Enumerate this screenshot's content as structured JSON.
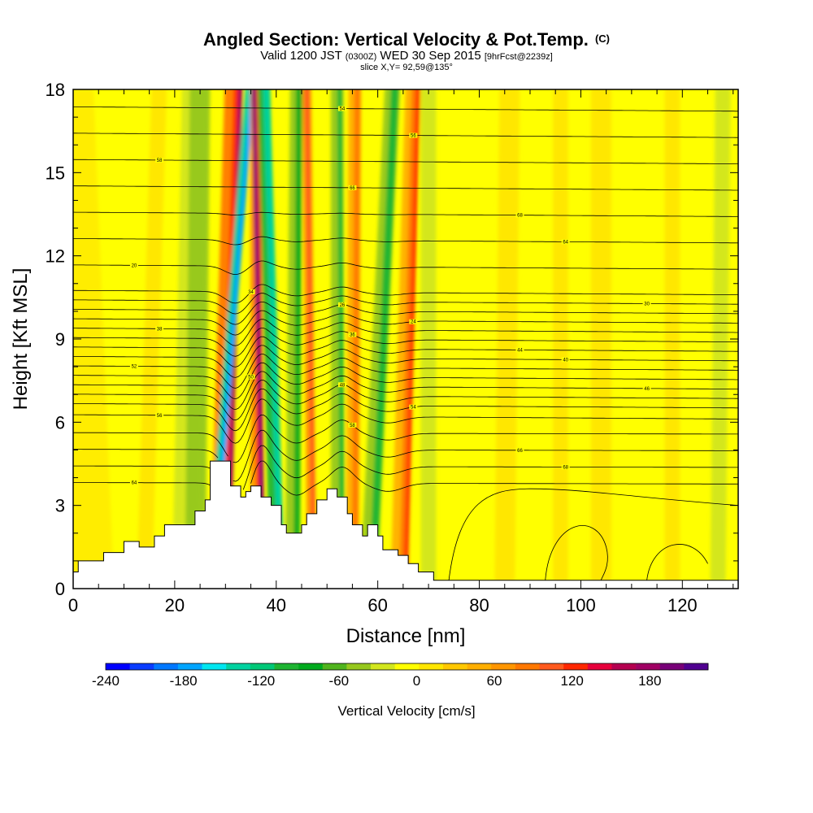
{
  "title": {
    "main": "Angled Section: Vertical Velocity & Pot.Temp.",
    "suffix": "(C)",
    "valid_prefix": "Valid 1200 JST",
    "valid_z": "(0300Z)",
    "valid_date": "WED 30 Sep 2015",
    "forecast": "[9hrFcst@2239z]",
    "slice": "slice X,Y= 92,59@135°"
  },
  "chart_data": {
    "type": "heatmap",
    "xlabel": "Distance [nm]",
    "ylabel": "Height [Kft MSL]",
    "xlim": [
      0,
      131
    ],
    "ylim": [
      0,
      18
    ],
    "x_ticks": [
      "0",
      "20",
      "40",
      "60",
      "80",
      "100",
      "120"
    ],
    "y_ticks": [
      "0",
      "3",
      "6",
      "9",
      "12",
      "15",
      "18"
    ],
    "colorbar": {
      "title": "Vertical Velocity [cm/s]",
      "range": [
        -240,
        210
      ],
      "step": 15,
      "tick_labels": [
        "-240",
        "-180",
        "-120",
        "-60",
        "0",
        "60",
        "120",
        "180"
      ],
      "colors": [
        "#0000ff",
        "#0a3cff",
        "#0078ff",
        "#00a5ff",
        "#00e6f0",
        "#00d2a0",
        "#00c878",
        "#1eb432",
        "#00aa1e",
        "#50b41e",
        "#96c81e",
        "#d2e61e",
        "#ffff00",
        "#ffe600",
        "#ffc800",
        "#ffaf00",
        "#ff9600",
        "#ff7800",
        "#ff5a1e",
        "#ff2800",
        "#e6003c",
        "#b40050",
        "#a00064",
        "#780078",
        "#500090"
      ]
    },
    "contour_labels": [
      "64",
      "68",
      "66",
      "58",
      "56",
      "54",
      "48",
      "46",
      "50",
      "52",
      "40",
      "44",
      "36",
      "38",
      "24",
      "26",
      "30",
      "34",
      "20"
    ],
    "terrain": [
      [
        0,
        0.6
      ],
      [
        1,
        1.0
      ],
      [
        6,
        1.3
      ],
      [
        10,
        1.7
      ],
      [
        13,
        1.5
      ],
      [
        16,
        1.9
      ],
      [
        18,
        2.3
      ],
      [
        24,
        2.8
      ],
      [
        26,
        3.2
      ],
      [
        27,
        4.6
      ],
      [
        30,
        4.6
      ],
      [
        31,
        3.7
      ],
      [
        33,
        3.3
      ],
      [
        34,
        3.5
      ],
      [
        35,
        3.7
      ],
      [
        37,
        3.3
      ],
      [
        39,
        3.0
      ],
      [
        41,
        2.3
      ],
      [
        42,
        2.0
      ],
      [
        45,
        2.3
      ],
      [
        46,
        2.7
      ],
      [
        48,
        3.2
      ],
      [
        50,
        3.6
      ],
      [
        52,
        3.3
      ],
      [
        54,
        2.7
      ],
      [
        55,
        2.3
      ],
      [
        57,
        1.9
      ],
      [
        58,
        2.3
      ],
      [
        60,
        1.9
      ],
      [
        61,
        1.4
      ],
      [
        64,
        1.2
      ],
      [
        66,
        0.9
      ],
      [
        68,
        0.6
      ],
      [
        71,
        0.3
      ],
      [
        131,
        0.3
      ]
    ]
  }
}
